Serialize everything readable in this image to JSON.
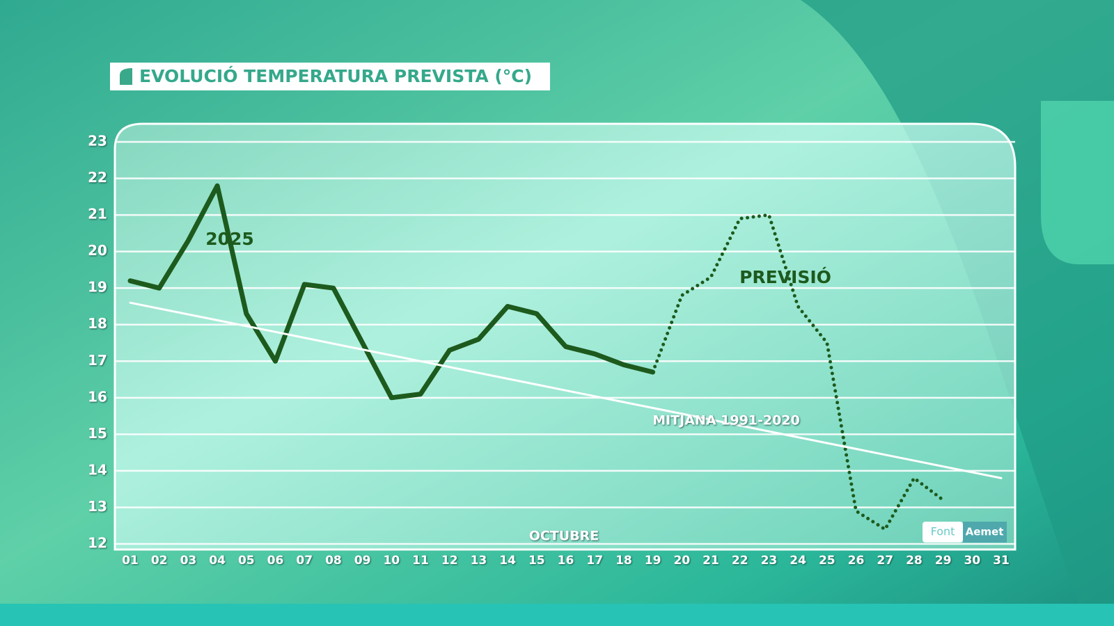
{
  "chart_data": {
    "type": "line",
    "title": "EVOLUCIÓ TEMPERATURA PREVISTA (°C)",
    "x_label": "OCTUBRE",
    "source_label": "Font",
    "source": "Aemet",
    "x": [
      "01",
      "02",
      "03",
      "04",
      "05",
      "06",
      "07",
      "08",
      "09",
      "10",
      "11",
      "12",
      "13",
      "14",
      "15",
      "16",
      "17",
      "18",
      "19",
      "20",
      "21",
      "22",
      "23",
      "24",
      "25",
      "26",
      "27",
      "28",
      "29",
      "30",
      "31"
    ],
    "series": [
      {
        "name": "2025",
        "color": "#1d5a1d",
        "line_style": "solid",
        "values": [
          19.2,
          19.0,
          20.3,
          21.8,
          18.3,
          17.0,
          19.1,
          19.0,
          17.5,
          16.0,
          16.1,
          17.3,
          17.6,
          18.5,
          18.3,
          17.4,
          17.2,
          16.9,
          16.7,
          null,
          null,
          null,
          null,
          null,
          null,
          null,
          null,
          null,
          null,
          null,
          null
        ]
      },
      {
        "name": "PREVISIÓ",
        "color": "#1d5a1d",
        "line_style": "dotted",
        "values": [
          null,
          null,
          null,
          null,
          null,
          null,
          null,
          null,
          null,
          null,
          null,
          null,
          null,
          null,
          null,
          null,
          null,
          null,
          16.7,
          18.8,
          19.3,
          20.9,
          21.0,
          18.5,
          17.5,
          12.9,
          12.4,
          13.8,
          13.2,
          null,
          null
        ]
      },
      {
        "name": "MITJANA 1991-2020",
        "color": "#ffffff",
        "line_style": "solid",
        "values": [
          18.6,
          18.44,
          18.28,
          18.12,
          17.96,
          17.8,
          17.64,
          17.48,
          17.32,
          17.16,
          17.0,
          16.84,
          16.68,
          16.52,
          16.36,
          16.2,
          16.04,
          15.88,
          15.72,
          15.56,
          15.4,
          15.24,
          15.08,
          14.92,
          14.76,
          14.6,
          14.44,
          14.28,
          14.12,
          13.96,
          13.8
        ]
      }
    ],
    "ylim": [
      12,
      23
    ],
    "yticks": [
      12,
      13,
      14,
      15,
      16,
      17,
      18,
      19,
      20,
      21,
      22,
      23
    ],
    "grid": true
  }
}
